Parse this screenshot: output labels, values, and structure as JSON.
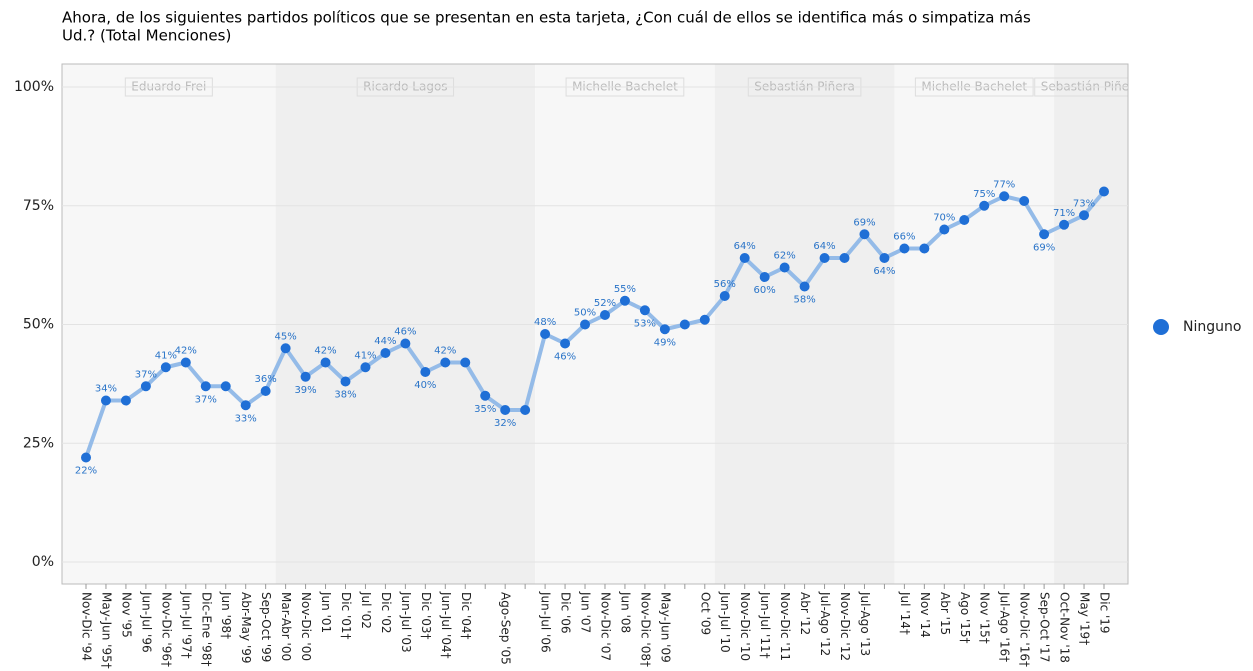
{
  "chart_data": {
    "type": "line",
    "title": "Ahora, de los siguientes partidos políticos que se presentan en esta tarjeta, ¿Con cuál de ellos se identifica más o simpatiza más",
    "subtitle": "Ud.? (Total Menciones)",
    "categories": [
      "Nov-Dic '94",
      "May-Jun '95†",
      "Nov '95",
      "Jun-Jul '96",
      "Nov-Dic '96†",
      "Jun-Jul '97†",
      "Dic-Ene '98†",
      "Jun '98†",
      "Abr-May '99",
      "Sep-Oct '99",
      "Mar-Abr '00",
      "Nov-Dic '00",
      "Jun '01",
      "Dic '01†",
      "Jul '02",
      "Dic '02",
      "Jun-Jul '03",
      "Dic '03†",
      "Jun-Jul '04†",
      "Dic '04†",
      null,
      "Ago-Sep '05",
      null,
      "Jun-Jul '06",
      "Dic '06",
      "Jun '07",
      "Nov-Dic '07",
      "Jun '08",
      "Nov-Dic '08†",
      "May-Jun '09",
      null,
      "Oct '09",
      "Jun-Jul '10",
      "Nov-Dic '10",
      "Jun-Jul '11†",
      "Nov-Dic '11",
      "Abr '12",
      "Jul-Ago '12",
      "Nov-Dic '12",
      "Jul-Ago '13",
      null,
      "Jul '14†",
      "Nov '14",
      "Abr '15",
      "Ago '15†",
      "Nov '15†",
      "Jul-Ago '16†",
      "Nov-Dic '16†",
      "Sep-Oct '17",
      "Oct-Nov '18",
      "May '19†",
      "Dic '19"
    ],
    "series": [
      {
        "name": "Ninguno",
        "color": "#1f6fd6",
        "line_color": "#94bbe8",
        "values": [
          22,
          34,
          34,
          37,
          41,
          42,
          37,
          37,
          33,
          36,
          45,
          39,
          42,
          38,
          41,
          44,
          46,
          40,
          42,
          42,
          35,
          32,
          32,
          48,
          46,
          50,
          52,
          55,
          53,
          49,
          50,
          51,
          56,
          64,
          60,
          62,
          58,
          64,
          64,
          69,
          64,
          66,
          66,
          70,
          72,
          75,
          77,
          76,
          69,
          71,
          73,
          78
        ],
        "value_labels": [
          "22%",
          "34%",
          null,
          "37%",
          "41%",
          "42%",
          "37%",
          null,
          "33%",
          "36%",
          "45%",
          "39%",
          "42%",
          "38%",
          "41%",
          "44%",
          "46%",
          "40%",
          "42%",
          null,
          "35%",
          "32%",
          null,
          "48%",
          "46%",
          "50%",
          "52%",
          "55%",
          "53%",
          "49%",
          null,
          null,
          "56%",
          "64%",
          "60%",
          "62%",
          "58%",
          "64%",
          null,
          "69%",
          "64%",
          "66%",
          null,
          "70%",
          null,
          "75%",
          "77%",
          null,
          "69%",
          "71%",
          "73%",
          null
        ]
      }
    ],
    "ylim": [
      0,
      100
    ],
    "yticks": [
      {
        "value": 0,
        "label": "0%"
      },
      {
        "value": 25,
        "label": "25%"
      },
      {
        "value": 50,
        "label": "50%"
      },
      {
        "value": 75,
        "label": "75%"
      },
      {
        "value": 100,
        "label": "100%"
      }
    ],
    "grid": true,
    "legend": "right",
    "bands": [
      {
        "label": "Eduardo Frei",
        "start": "Nov-Dic '94"
      },
      {
        "label": "Ricardo Lagos",
        "start": "Mar-Abr '00"
      },
      {
        "label": "Michelle Bachelet",
        "start": "Jun-Jul '06"
      },
      {
        "label": "Sebastián Piñera",
        "start": "Jun-Jul '10"
      },
      {
        "label": "Michelle Bachelet",
        "start": "Jul '14†"
      },
      {
        "label": "Sebastián Piñera",
        "start": "Oct-Nov '18"
      }
    ]
  }
}
